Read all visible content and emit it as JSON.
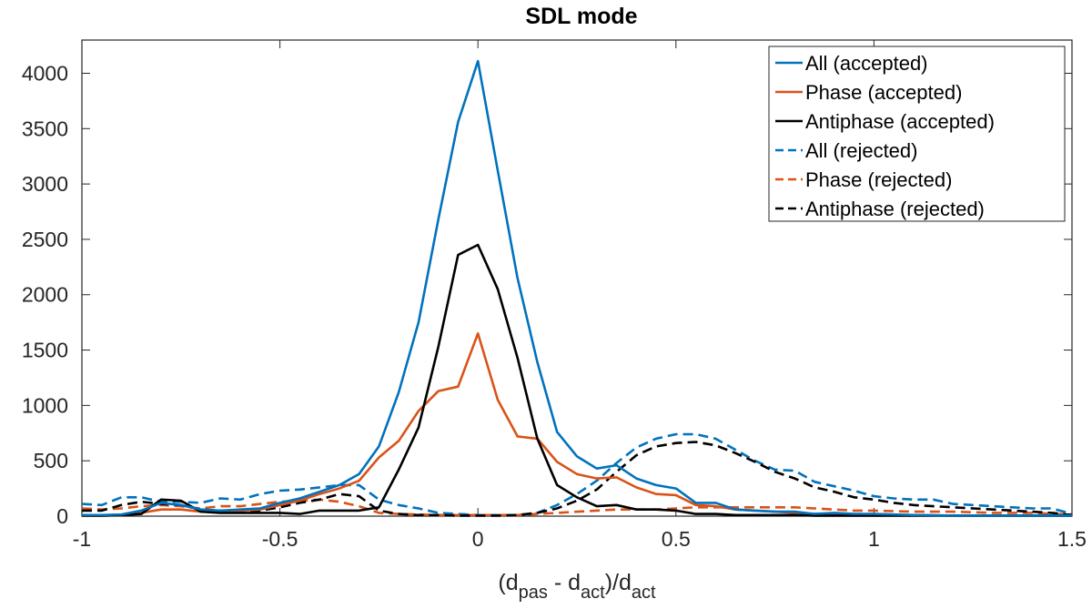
{
  "chart_data": {
    "type": "line",
    "title": "SDL mode",
    "xlabel": "(d_pas - d_act)/d_act",
    "xlabel_parts": {
      "open": "(d",
      "sub1": "pas",
      "mid": " - d",
      "sub2": "act",
      "close": ")/d",
      "sub3": "act"
    },
    "ylabel": "",
    "xlim": [
      -1,
      1.5
    ],
    "ylim": [
      0,
      4300
    ],
    "xticks": [
      -1,
      -0.5,
      0,
      0.5,
      1,
      1.5
    ],
    "xtick_labels": [
      "-1",
      "-0.5",
      "0",
      "0.5",
      "1",
      "1.5"
    ],
    "yticks": [
      0,
      500,
      1000,
      1500,
      2000,
      2500,
      3000,
      3500,
      4000
    ],
    "ytick_labels": [
      "0",
      "500",
      "1000",
      "1500",
      "2000",
      "2500",
      "3000",
      "3500",
      "4000"
    ],
    "grid": false,
    "legend_position": "top-right",
    "series": [
      {
        "name": "All (accepted)",
        "color": "#0072BD",
        "dash": "solid",
        "x": [
          -1,
          -0.95,
          -0.9,
          -0.85,
          -0.8,
          -0.75,
          -0.7,
          -0.65,
          -0.6,
          -0.55,
          -0.5,
          -0.45,
          -0.4,
          -0.35,
          -0.3,
          -0.25,
          -0.2,
          -0.15,
          -0.1,
          -0.05,
          0,
          0.05,
          0.1,
          0.15,
          0.2,
          0.25,
          0.3,
          0.35,
          0.4,
          0.45,
          0.5,
          0.55,
          0.6,
          0.65,
          0.7,
          0.75,
          0.8,
          0.85,
          0.9,
          0.95,
          1,
          1.1,
          1.2,
          1.3,
          1.4,
          1.5
        ],
        "y": [
          10,
          10,
          15,
          50,
          120,
          100,
          60,
          50,
          60,
          70,
          120,
          160,
          220,
          280,
          380,
          630,
          1120,
          1750,
          2680,
          3560,
          4110,
          3120,
          2150,
          1390,
          760,
          540,
          430,
          460,
          340,
          280,
          250,
          120,
          120,
          60,
          50,
          40,
          40,
          20,
          30,
          20,
          20,
          10,
          5,
          5,
          5,
          5
        ]
      },
      {
        "name": "Phase (accepted)",
        "color": "#D95319",
        "dash": "solid",
        "x": [
          -1,
          -0.95,
          -0.9,
          -0.85,
          -0.8,
          -0.75,
          -0.7,
          -0.65,
          -0.6,
          -0.55,
          -0.5,
          -0.45,
          -0.4,
          -0.35,
          -0.3,
          -0.25,
          -0.2,
          -0.15,
          -0.1,
          -0.05,
          0,
          0.05,
          0.1,
          0.15,
          0.2,
          0.25,
          0.3,
          0.35,
          0.4,
          0.45,
          0.5,
          0.55,
          0.6,
          0.65,
          0.7,
          0.75,
          0.8,
          0.85,
          0.9,
          0.95,
          1,
          1.1,
          1.2,
          1.3,
          1.4,
          1.5
        ],
        "y": [
          5,
          5,
          10,
          30,
          60,
          60,
          40,
          40,
          50,
          60,
          100,
          140,
          200,
          250,
          320,
          530,
          680,
          950,
          1130,
          1170,
          1650,
          1050,
          720,
          700,
          490,
          380,
          340,
          350,
          260,
          200,
          190,
          100,
          90,
          60,
          50,
          40,
          30,
          20,
          25,
          15,
          15,
          10,
          5,
          5,
          5,
          5
        ]
      },
      {
        "name": "Antiphase (accepted)",
        "color": "#000000",
        "dash": "solid",
        "x": [
          -1,
          -0.95,
          -0.9,
          -0.85,
          -0.8,
          -0.75,
          -0.7,
          -0.65,
          -0.6,
          -0.55,
          -0.5,
          -0.45,
          -0.4,
          -0.35,
          -0.3,
          -0.25,
          -0.2,
          -0.15,
          -0.1,
          -0.05,
          0,
          0.05,
          0.1,
          0.15,
          0.2,
          0.25,
          0.3,
          0.35,
          0.4,
          0.45,
          0.5,
          0.55,
          0.6,
          0.65,
          0.7,
          0.75,
          0.8,
          0.85,
          0.9,
          0.95,
          1,
          1.1,
          1.2,
          1.3,
          1.4,
          1.5
        ],
        "y": [
          5,
          5,
          10,
          20,
          150,
          140,
          40,
          30,
          30,
          30,
          30,
          20,
          50,
          50,
          50,
          80,
          420,
          800,
          1530,
          2360,
          2450,
          2050,
          1430,
          700,
          280,
          170,
          90,
          100,
          60,
          60,
          50,
          20,
          20,
          10,
          10,
          10,
          10,
          5,
          5,
          5,
          5,
          5,
          5,
          5,
          5,
          5
        ]
      },
      {
        "name": "All (rejected)",
        "color": "#0072BD",
        "dash": "dashed",
        "x": [
          -1,
          -0.95,
          -0.9,
          -0.85,
          -0.8,
          -0.75,
          -0.7,
          -0.65,
          -0.6,
          -0.55,
          -0.5,
          -0.45,
          -0.4,
          -0.35,
          -0.3,
          -0.25,
          -0.2,
          -0.15,
          -0.1,
          -0.05,
          0,
          0.05,
          0.1,
          0.15,
          0.2,
          0.25,
          0.3,
          0.35,
          0.4,
          0.45,
          0.5,
          0.55,
          0.6,
          0.65,
          0.7,
          0.75,
          0.8,
          0.85,
          0.9,
          0.95,
          1,
          1.05,
          1.1,
          1.15,
          1.2,
          1.25,
          1.3,
          1.35,
          1.4,
          1.45,
          1.5
        ],
        "y": [
          110,
          100,
          170,
          170,
          130,
          130,
          120,
          160,
          150,
          200,
          230,
          240,
          260,
          280,
          280,
          150,
          100,
          70,
          30,
          20,
          10,
          10,
          10,
          30,
          100,
          200,
          320,
          480,
          620,
          700,
          740,
          740,
          700,
          600,
          500,
          420,
          410,
          310,
          270,
          230,
          180,
          160,
          150,
          150,
          110,
          100,
          90,
          80,
          70,
          70,
          20
        ]
      },
      {
        "name": "Phase (rejected)",
        "color": "#D95319",
        "dash": "dashed",
        "x": [
          -1,
          -0.95,
          -0.9,
          -0.85,
          -0.8,
          -0.75,
          -0.7,
          -0.65,
          -0.6,
          -0.55,
          -0.5,
          -0.45,
          -0.4,
          -0.35,
          -0.3,
          -0.25,
          -0.2,
          -0.15,
          -0.1,
          -0.05,
          0,
          0.05,
          0.1,
          0.15,
          0.2,
          0.25,
          0.3,
          0.35,
          0.4,
          0.45,
          0.5,
          0.55,
          0.6,
          0.65,
          0.7,
          0.75,
          0.8,
          0.85,
          0.9,
          0.95,
          1,
          1.1,
          1.2,
          1.3,
          1.4,
          1.5
        ],
        "y": [
          70,
          60,
          70,
          90,
          100,
          90,
          70,
          90,
          90,
          110,
          130,
          140,
          150,
          130,
          90,
          30,
          20,
          15,
          10,
          10,
          10,
          10,
          10,
          20,
          30,
          40,
          50,
          60,
          60,
          60,
          70,
          80,
          80,
          80,
          80,
          80,
          80,
          70,
          60,
          50,
          50,
          40,
          40,
          30,
          30,
          15
        ]
      },
      {
        "name": "Antiphase (rejected)",
        "color": "#000000",
        "dash": "dashed",
        "x": [
          -1,
          -0.95,
          -0.9,
          -0.85,
          -0.8,
          -0.75,
          -0.7,
          -0.65,
          -0.6,
          -0.55,
          -0.5,
          -0.45,
          -0.4,
          -0.35,
          -0.3,
          -0.25,
          -0.2,
          -0.15,
          -0.1,
          -0.05,
          0,
          0.05,
          0.1,
          0.15,
          0.2,
          0.25,
          0.3,
          0.35,
          0.4,
          0.45,
          0.5,
          0.55,
          0.6,
          0.65,
          0.7,
          0.75,
          0.8,
          0.85,
          0.9,
          0.95,
          1,
          1.05,
          1.1,
          1.15,
          1.2,
          1.25,
          1.3,
          1.35,
          1.4,
          1.45,
          1.5
        ],
        "y": [
          50,
          50,
          100,
          130,
          110,
          100,
          60,
          50,
          40,
          50,
          80,
          120,
          150,
          200,
          180,
          50,
          20,
          10,
          10,
          5,
          5,
          5,
          10,
          30,
          70,
          140,
          240,
          400,
          550,
          630,
          660,
          670,
          640,
          570,
          490,
          400,
          340,
          260,
          220,
          170,
          150,
          120,
          100,
          90,
          80,
          70,
          60,
          50,
          40,
          30,
          10
        ]
      }
    ]
  }
}
